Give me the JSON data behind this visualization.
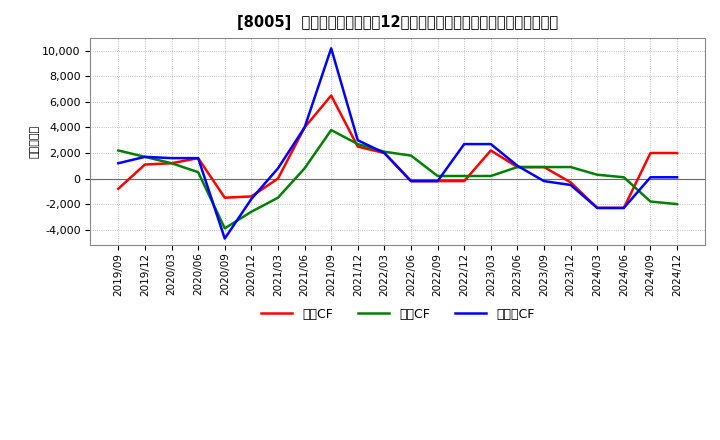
{
  "title": "[8005]  キャッシュフローの12か月移動合計の対前年同期増減額の推移",
  "ylabel": "（百万円）",
  "ylim": [
    -5200,
    11000
  ],
  "yticks": [
    -4000,
    -2000,
    0,
    2000,
    4000,
    6000,
    8000,
    10000
  ],
  "x_labels": [
    "2019/09",
    "2019/12",
    "2020/03",
    "2020/06",
    "2020/09",
    "2020/12",
    "2021/03",
    "2021/06",
    "2021/09",
    "2021/12",
    "2022/03",
    "2022/06",
    "2022/09",
    "2022/12",
    "2023/03",
    "2023/06",
    "2023/09",
    "2023/12",
    "2024/03",
    "2024/06",
    "2024/09",
    "2024/12"
  ],
  "operating_cf": [
    -800,
    1100,
    1200,
    1600,
    -1500,
    -1400,
    0,
    4000,
    6500,
    2500,
    2000,
    -200,
    -200,
    -200,
    2200,
    900,
    900,
    -300,
    -2300,
    -2300,
    2000,
    2000
  ],
  "investing_cf": [
    2200,
    1700,
    1200,
    500,
    -3900,
    -2600,
    -1500,
    800,
    3800,
    2700,
    2100,
    1800,
    200,
    200,
    200,
    900,
    900,
    900,
    300,
    100,
    -1800,
    -2000
  ],
  "free_cf": [
    1200,
    1700,
    1600,
    1600,
    -4700,
    -1600,
    800,
    4000,
    10200,
    3000,
    2000,
    -200,
    -200,
    2700,
    2700,
    1000,
    -200,
    -500,
    -2300,
    -2300,
    100,
    100
  ],
  "operating_color": "#ff0000",
  "investing_color": "#008000",
  "free_color": "#0000ff",
  "background_color": "#ffffff",
  "grid_color": "#aaaaaa",
  "legend_labels": [
    "営業CF",
    "投資CF",
    "フリーCF"
  ]
}
